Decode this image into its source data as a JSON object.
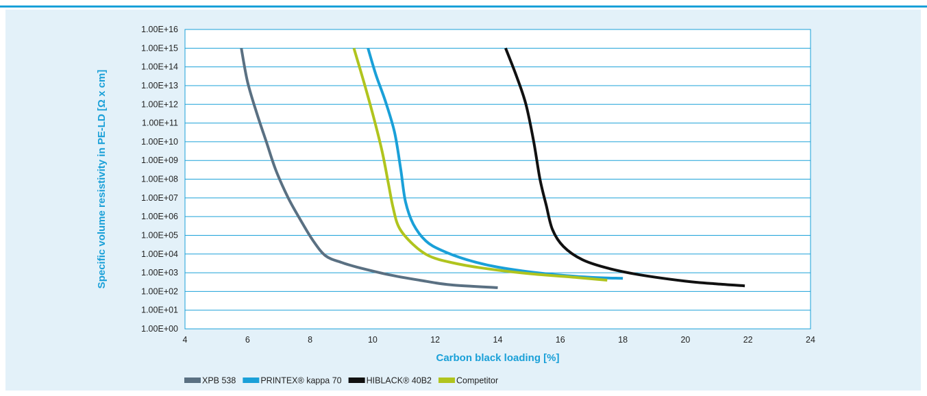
{
  "chart_data": {
    "type": "line",
    "title": "",
    "xlabel": "Carbon black loading [%]",
    "ylabel": "Specific volume resistivity in PE-LD [Ω x cm]",
    "xlim": [
      4,
      24
    ],
    "ylim": [
      0,
      16
    ],
    "y_scale": "log10",
    "grid": true,
    "legend_position": "bottom",
    "x_ticks": [
      "4",
      "6",
      "8",
      "10",
      "12",
      "14",
      "16",
      "18",
      "20",
      "22",
      "24"
    ],
    "y_ticks": [
      "1.00E+00",
      "1.00E+01",
      "1.00E+02",
      "1.00E+03",
      "1.00E+04",
      "1.00E+05",
      "1.00E+06",
      "1.00E+07",
      "1.00E+08",
      "1.00E+09",
      "1.00E+10",
      "1.00E+11",
      "1.00E+12",
      "1.00E+13",
      "1.00E+14",
      "1.00E+15",
      "1.00E+16"
    ],
    "series_note": "y values are log10 of resistivity (Ω x cm)",
    "series": [
      {
        "name": "XPB 538",
        "color": "#5a7082",
        "points": [
          [
            5.8,
            15
          ],
          [
            6.0,
            13.2
          ],
          [
            6.3,
            11.5
          ],
          [
            6.6,
            10.0
          ],
          [
            6.9,
            8.5
          ],
          [
            7.3,
            7.0
          ],
          [
            7.7,
            5.8
          ],
          [
            8.1,
            4.7
          ],
          [
            8.5,
            3.9
          ],
          [
            9.0,
            3.55
          ],
          [
            9.5,
            3.3
          ],
          [
            10.5,
            2.9
          ],
          [
            11.5,
            2.6
          ],
          [
            12.5,
            2.35
          ],
          [
            14.0,
            2.2
          ]
        ]
      },
      {
        "name": "PRINTEX® kappa 70",
        "color": "#1aa0d8",
        "points": [
          [
            9.85,
            15
          ],
          [
            10.1,
            13.6
          ],
          [
            10.4,
            12.2
          ],
          [
            10.7,
            10.5
          ],
          [
            10.9,
            8.5
          ],
          [
            11.05,
            6.8
          ],
          [
            11.3,
            5.6
          ],
          [
            11.7,
            4.7
          ],
          [
            12.2,
            4.2
          ],
          [
            13.0,
            3.7
          ],
          [
            14.0,
            3.3
          ],
          [
            15.5,
            2.95
          ],
          [
            17.0,
            2.75
          ],
          [
            18.0,
            2.7
          ]
        ]
      },
      {
        "name": "HIBLACK® 40B2",
        "color": "#111111",
        "points": [
          [
            14.25,
            15
          ],
          [
            14.6,
            13.5
          ],
          [
            14.9,
            12.0
          ],
          [
            15.15,
            10.0
          ],
          [
            15.35,
            8.0
          ],
          [
            15.55,
            6.6
          ],
          [
            15.75,
            5.3
          ],
          [
            16.1,
            4.4
          ],
          [
            16.7,
            3.7
          ],
          [
            17.5,
            3.25
          ],
          [
            18.5,
            2.9
          ],
          [
            20.0,
            2.55
          ],
          [
            21.0,
            2.4
          ],
          [
            21.9,
            2.3
          ]
        ]
      },
      {
        "name": "Competitor",
        "color": "#b0c41e",
        "points": [
          [
            9.4,
            15
          ],
          [
            9.7,
            13.3
          ],
          [
            10.0,
            11.5
          ],
          [
            10.3,
            9.5
          ],
          [
            10.5,
            7.8
          ],
          [
            10.65,
            6.5
          ],
          [
            10.85,
            5.4
          ],
          [
            11.3,
            4.5
          ],
          [
            11.8,
            3.9
          ],
          [
            12.5,
            3.55
          ],
          [
            13.5,
            3.25
          ],
          [
            15.0,
            2.95
          ],
          [
            16.5,
            2.75
          ],
          [
            17.5,
            2.6
          ]
        ]
      }
    ]
  }
}
